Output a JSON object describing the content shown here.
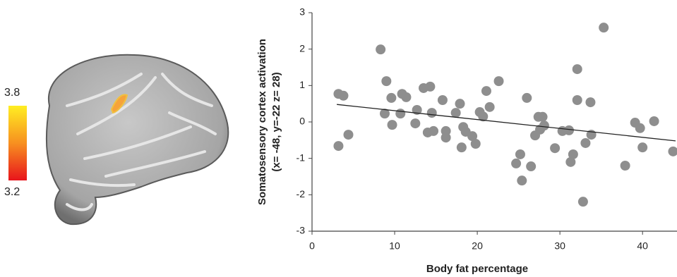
{
  "chart_data": {
    "type": "scatter",
    "xlabel": "Body fat percentage",
    "ylabel": [
      "Somatosensory cortex activation",
      "(x= -48, y=-22 z= 28)"
    ],
    "colorbar": {
      "max": 3.8,
      "min": 3.2
    },
    "color": "#8e8e8e",
    "xlim": [
      0,
      44
    ],
    "ylim": [
      -3,
      3
    ],
    "xticks": [
      0,
      10,
      20,
      30,
      40
    ],
    "yticks": [
      -3,
      -2,
      -1,
      0,
      1,
      2,
      3
    ],
    "trend_line": {
      "x": [
        3,
        44
      ],
      "y": [
        0.48,
        -0.52
      ]
    },
    "x": [
      3.2,
      3.8,
      3.2,
      4.4,
      8.3,
      9.0,
      8.8,
      9.6,
      9.7,
      10.7,
      10.9,
      11.4,
      12.5,
      12.7,
      13.5,
      14.3,
      14.0,
      14.5,
      14.7,
      15.8,
      16.2,
      16.2,
      17.4,
      17.9,
      18.1,
      18.3,
      18.6,
      19.4,
      19.8,
      20.3,
      20.7,
      21.1,
      21.5,
      22.6,
      24.7,
      25.2,
      25.4,
      26.0,
      26.5,
      27.0,
      27.4,
      27.6,
      27.9,
      28.1,
      29.4,
      30.3,
      31.1,
      31.3,
      31.6,
      32.1,
      32.1,
      32.8,
      33.1,
      33.7,
      33.8,
      35.3,
      37.9,
      39.1,
      39.7,
      40.0,
      41.4,
      43.7
    ],
    "y": [
      0.77,
      0.72,
      -0.66,
      -0.35,
      1.99,
      1.12,
      0.23,
      0.66,
      -0.08,
      0.23,
      0.77,
      0.68,
      -0.04,
      0.33,
      0.93,
      0.97,
      -0.29,
      0.25,
      -0.25,
      0.6,
      -0.25,
      -0.43,
      0.25,
      0.5,
      -0.7,
      -0.14,
      -0.27,
      -0.39,
      -0.6,
      0.27,
      0.15,
      0.85,
      0.41,
      1.12,
      -1.14,
      -0.89,
      -1.61,
      0.66,
      -1.22,
      -0.37,
      0.14,
      -0.21,
      0.14,
      -0.1,
      -0.72,
      -0.25,
      -0.23,
      -1.1,
      -0.89,
      1.45,
      0.6,
      -2.19,
      -0.58,
      0.54,
      -0.35,
      2.59,
      -1.2,
      -0.02,
      -0.17,
      -0.7,
      0.02,
      -0.81
    ]
  }
}
